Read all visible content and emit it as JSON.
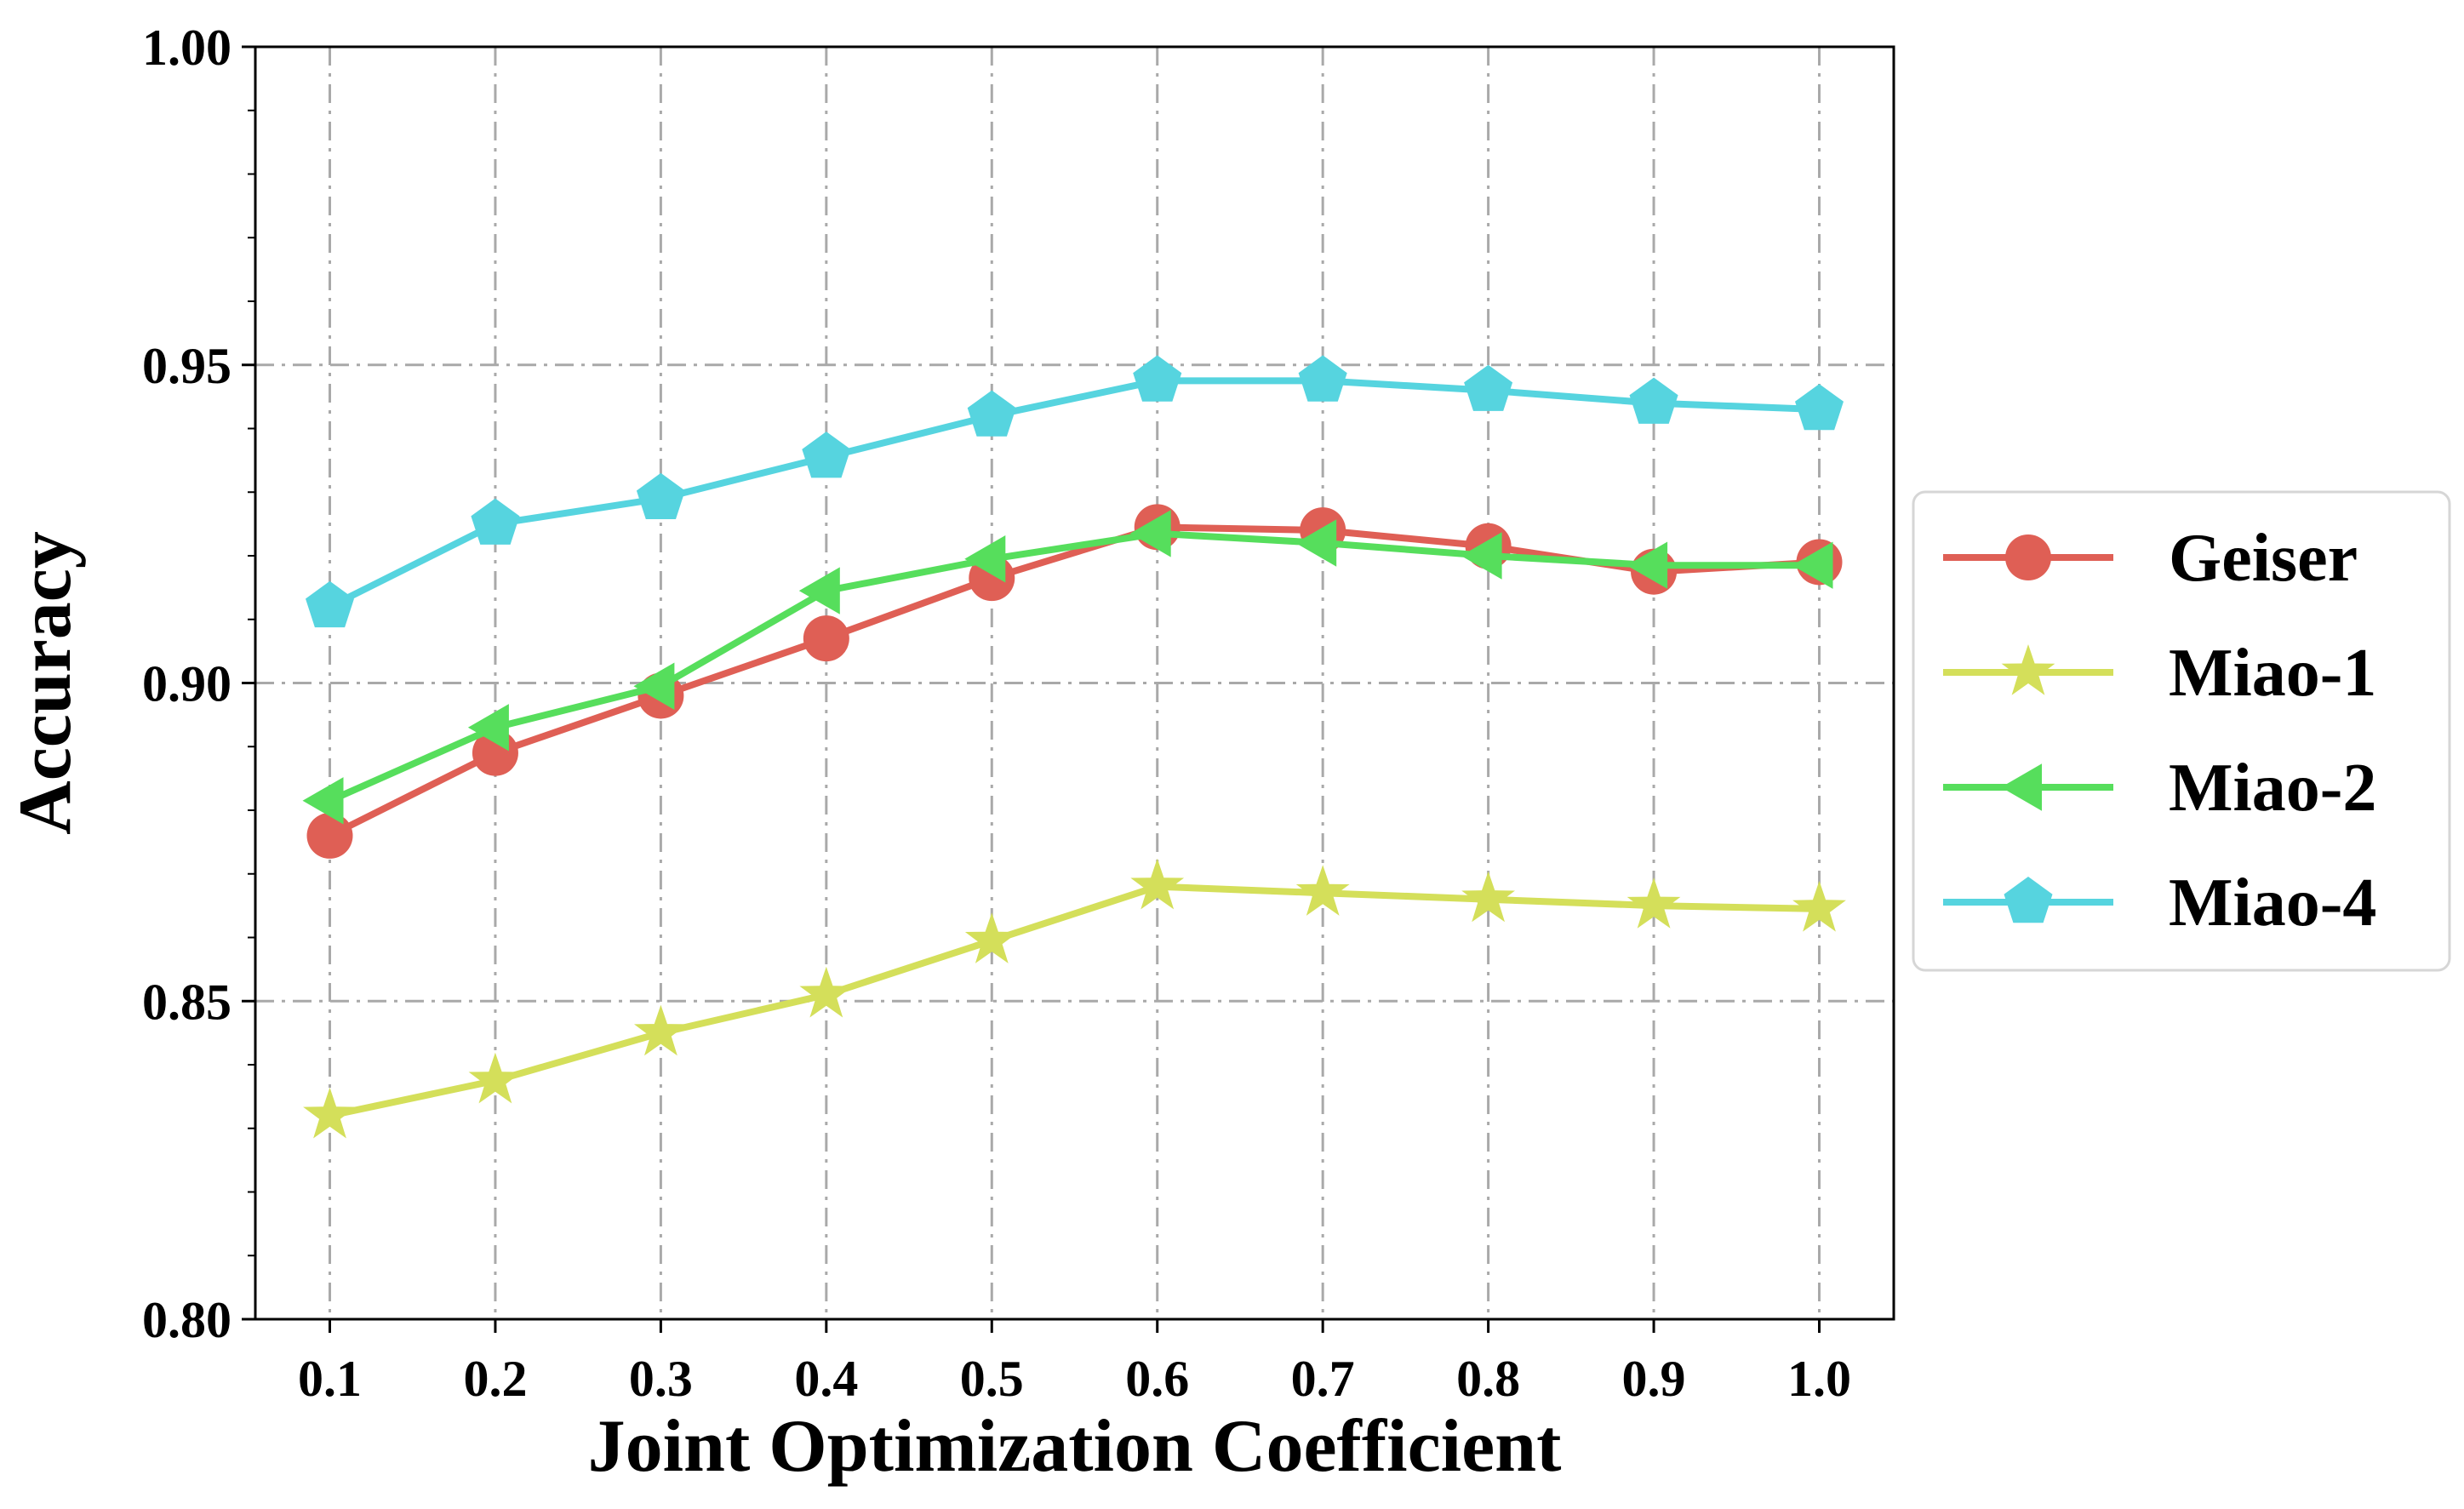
{
  "chart_data": {
    "type": "line",
    "title": "",
    "xlabel": "Joint Optimization Coefficient",
    "ylabel": "Accuracy",
    "x": [
      0.1,
      0.2,
      0.3,
      0.4,
      0.5,
      0.6,
      0.7,
      0.8,
      0.9,
      1.0
    ],
    "x_tick_labels": [
      "0.1",
      "0.2",
      "0.3",
      "0.4",
      "0.5",
      "0.6",
      "0.7",
      "0.8",
      "0.9",
      "1.0"
    ],
    "xlim": [
      0.055,
      1.045
    ],
    "ylim": [
      0.8,
      1.0
    ],
    "y_ticks": [
      0.8,
      0.85,
      0.9,
      0.95,
      1.0
    ],
    "y_tick_labels": [
      "0.80",
      "0.85",
      "0.90",
      "0.95",
      "1.00"
    ],
    "y_minor_step": 0.01,
    "grid": true,
    "legend_position": "center-right, outside plot",
    "series": [
      {
        "name": "Geiser",
        "color": "#df5f55",
        "marker": "circle",
        "values": [
          0.876,
          0.889,
          0.898,
          0.907,
          0.9165,
          0.9245,
          0.924,
          0.9215,
          0.9175,
          0.919
        ]
      },
      {
        "name": "Miao-1",
        "color": "#d4df5a",
        "marker": "star",
        "values": [
          0.832,
          0.8375,
          0.845,
          0.851,
          0.8595,
          0.868,
          0.867,
          0.866,
          0.865,
          0.8645
        ]
      },
      {
        "name": "Miao-2",
        "color": "#56de5c",
        "marker": "triangle-left",
        "values": [
          0.8815,
          0.893,
          0.8995,
          0.9145,
          0.9195,
          0.9235,
          0.922,
          0.92,
          0.9185,
          0.9185
        ]
      },
      {
        "name": "Miao-4",
        "color": "#56d4df",
        "marker": "pentagon",
        "values": [
          0.912,
          0.925,
          0.929,
          0.9355,
          0.942,
          0.9475,
          0.9475,
          0.946,
          0.944,
          0.943
        ]
      }
    ]
  }
}
